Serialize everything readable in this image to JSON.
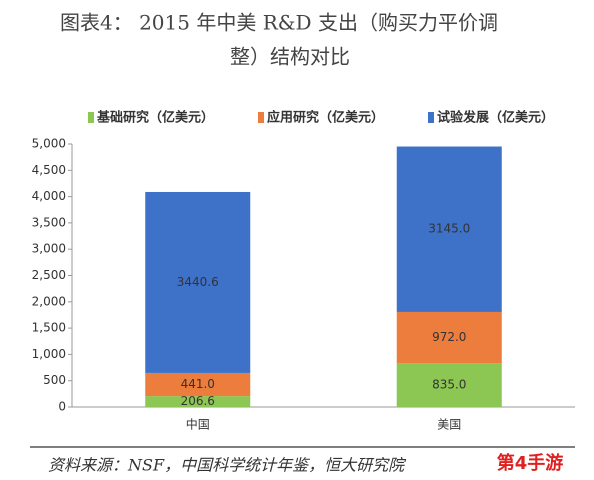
{
  "chart_data": {
    "type": "stacked_bar",
    "title": "图表4：  2015 年中美 R&D 支出（购买力平价调整）结构对比",
    "categories": [
      "中国",
      "美国"
    ],
    "series": [
      {
        "name": "基础研究（亿美元）",
        "color": "#8cc653",
        "values": [
          206.6,
          835.0
        ],
        "value_labels": [
          "206.6",
          "835.0"
        ]
      },
      {
        "name": "应用研究（亿美元）",
        "color": "#ec7d3c",
        "values": [
          441.0,
          972.0
        ],
        "value_labels": [
          "441.0",
          "972.0"
        ]
      },
      {
        "name": "试验发展（亿美元）",
        "color": "#3d72c8",
        "values": [
          3440.6,
          3145.0
        ],
        "value_labels": [
          "3440.6",
          "3145.0"
        ]
      }
    ],
    "ylim": [
      0,
      5000
    ],
    "yticks": [
      0,
      500,
      {
        "value": 1000,
        "label": "1,000"
      },
      {
        "value": 1500,
        "label": "1,500"
      },
      {
        "value": 2000,
        "label": "2,000"
      },
      {
        "value": 2500,
        "label": "2,500"
      },
      {
        "value": 3000,
        "label": "3,000"
      },
      {
        "value": 3500,
        "label": "3,500"
      },
      {
        "value": 4000,
        "label": "4,000"
      },
      {
        "value": 4500,
        "label": "4,500"
      },
      {
        "value": 5000,
        "label": "5,000"
      }
    ],
    "legend": "top",
    "source": "资料来源：NSF，中国科学统计年鉴，恒大研究院",
    "watermark": "第4手游"
  }
}
